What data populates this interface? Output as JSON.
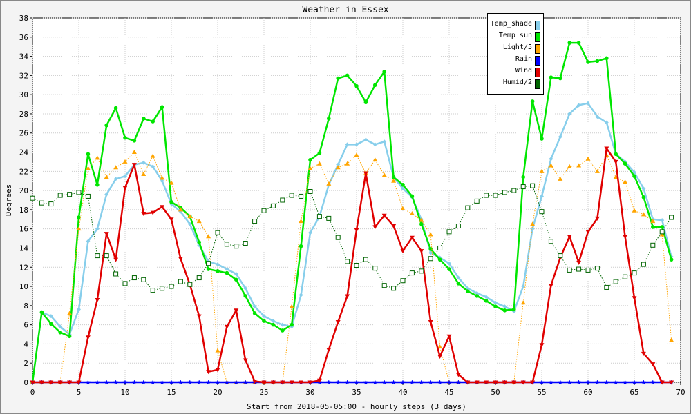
{
  "chart_data": {
    "type": "line",
    "title": "Weather in Essex",
    "xlabel": "Start from 2018-05-05:00 - hourly steps (3 days)",
    "ylabel": "Degrees",
    "xlim": [
      0,
      70
    ],
    "ylim": [
      0,
      38
    ],
    "x_ticks": [
      0,
      5,
      10,
      15,
      20,
      25,
      30,
      35,
      40,
      45,
      50,
      55,
      60,
      65,
      70
    ],
    "y_ticks": [
      0,
      2,
      4,
      6,
      8,
      10,
      12,
      14,
      16,
      18,
      20,
      22,
      24,
      26,
      28,
      30,
      32,
      34,
      36,
      38
    ],
    "grid": true,
    "legend_position": "top-right",
    "x": [
      0,
      1,
      2,
      3,
      4,
      5,
      6,
      7,
      8,
      9,
      10,
      11,
      12,
      13,
      14,
      15,
      16,
      17,
      18,
      19,
      20,
      21,
      22,
      23,
      24,
      25,
      26,
      27,
      28,
      29,
      30,
      31,
      32,
      33,
      34,
      35,
      36,
      37,
      38,
      39,
      40,
      41,
      42,
      43,
      44,
      45,
      46,
      47,
      48,
      49,
      50,
      51,
      52,
      53,
      54,
      55,
      56,
      57,
      58,
      59,
      60,
      61,
      62,
      63,
      64,
      65,
      66,
      67,
      68,
      69
    ],
    "series": [
      {
        "name": "Temp_shade",
        "color": "#87ceeb",
        "marker": "diamond",
        "width": 2.5,
        "values": [
          0,
          7.3,
          6.9,
          5.8,
          5.0,
          7.6,
          14.7,
          16.0,
          19.6,
          21.2,
          21.5,
          22.7,
          22.9,
          22.5,
          21.0,
          18.6,
          17.8,
          16.5,
          14.3,
          12.6,
          12.3,
          11.8,
          11.3,
          9.8,
          7.9,
          6.9,
          6.4,
          6.0,
          5.8,
          9.1,
          15.6,
          17.3,
          20.6,
          22.7,
          24.8,
          24.8,
          25.3,
          24.8,
          25.1,
          21.4,
          20.2,
          19.3,
          17.0,
          13.5,
          13.0,
          12.4,
          10.9,
          9.8,
          9.3,
          8.9,
          8.3,
          7.9,
          7.4,
          10.0,
          16.0,
          19.4,
          23.3,
          25.6,
          28.0,
          28.9,
          29.1,
          27.7,
          27.1,
          23.8,
          23.0,
          21.9,
          20.2,
          17.0,
          16.9,
          13.1
        ]
      },
      {
        "name": "Temp_sun",
        "color": "#00e600",
        "marker": "circle",
        "width": 2.5,
        "values": [
          0,
          7.3,
          6.1,
          5.2,
          4.8,
          17.2,
          23.8,
          20.6,
          26.8,
          28.6,
          25.5,
          25.2,
          27.5,
          27.2,
          28.7,
          18.8,
          18.2,
          17.3,
          14.6,
          11.8,
          11.6,
          11.4,
          10.7,
          9.0,
          7.2,
          6.4,
          6.0,
          5.4,
          6.0,
          14.2,
          23.2,
          23.9,
          27.5,
          31.7,
          32.0,
          30.9,
          29.2,
          31.0,
          32.4,
          21.4,
          20.6,
          19.4,
          16.5,
          13.9,
          12.8,
          11.8,
          10.3,
          9.5,
          9.0,
          8.5,
          7.9,
          7.5,
          7.6,
          21.4,
          29.3,
          25.4,
          31.8,
          31.7,
          35.4,
          35.4,
          33.4,
          33.5,
          33.8,
          23.8,
          22.8,
          21.5,
          19.3,
          16.2,
          16.2,
          12.8
        ]
      },
      {
        "name": "Light/5",
        "color": "#ffa500",
        "marker": "triangle-up",
        "width": 1,
        "dotted": true,
        "values": [
          0,
          0,
          0,
          0,
          7.2,
          16.0,
          22.3,
          23.4,
          21.4,
          22.4,
          23.0,
          24.0,
          21.7,
          23.6,
          21.3,
          20.8,
          18.0,
          17.3,
          16.8,
          15.2,
          3.3,
          0,
          0,
          0,
          0,
          0,
          0,
          0,
          7.9,
          16.8,
          22.3,
          22.8,
          20.7,
          22.4,
          22.8,
          23.7,
          21.8,
          23.2,
          21.6,
          21.0,
          18.1,
          17.6,
          16.9,
          15.4,
          3.7,
          0,
          0,
          0,
          0,
          0,
          0,
          0,
          0,
          8.3,
          16.5,
          22.0,
          22.6,
          21.2,
          22.5,
          22.6,
          23.3,
          22.0,
          23.7,
          21.4,
          20.9,
          17.9,
          17.5,
          16.8,
          15.4,
          4.4
        ]
      },
      {
        "name": "Rain",
        "color": "#0000ff",
        "marker": "star",
        "width": 2.5,
        "values": [
          0,
          0,
          0,
          0,
          0,
          0,
          0,
          0,
          0,
          0,
          0,
          0,
          0,
          0,
          0,
          0,
          0,
          0,
          0,
          0,
          0,
          0,
          0,
          0,
          0,
          0,
          0,
          0,
          0,
          0,
          0,
          0,
          0,
          0,
          0,
          0,
          0,
          0,
          0,
          0,
          0,
          0,
          0,
          0,
          0,
          0,
          0,
          0,
          0,
          0,
          0,
          0,
          0,
          0,
          0,
          0,
          0,
          0,
          0,
          0,
          0,
          0,
          0,
          0,
          0,
          0,
          0,
          0,
          0,
          0
        ]
      },
      {
        "name": "Wind",
        "color": "#e00000",
        "marker": "triangle-down",
        "width": 2.5,
        "values": [
          0,
          0,
          0,
          0,
          0,
          0,
          4.7,
          8.6,
          15.5,
          12.8,
          20.3,
          22.7,
          17.6,
          17.7,
          18.3,
          17.0,
          12.9,
          10.2,
          6.9,
          1.1,
          1.3,
          5.8,
          7.5,
          2.3,
          0.1,
          0,
          0,
          0,
          0,
          0,
          0,
          0.2,
          3.4,
          6.3,
          9.0,
          15.9,
          21.8,
          16.2,
          17.4,
          16.3,
          13.7,
          15.1,
          13.7,
          6.3,
          2.7,
          4.8,
          0.8,
          0,
          0,
          0,
          0,
          0,
          0,
          0,
          0,
          3.9,
          10.1,
          13.0,
          15.2,
          12.5,
          15.7,
          17.1,
          24.4,
          23.0,
          15.2,
          8.8,
          3.0,
          1.9,
          0,
          0
        ]
      },
      {
        "name": "Humid/2",
        "color": "#006400",
        "marker": "square",
        "width": 1,
        "dotted": true,
        "values": [
          19.2,
          18.7,
          18.6,
          19.5,
          19.6,
          19.8,
          19.4,
          13.2,
          13.2,
          11.3,
          10.3,
          10.9,
          10.7,
          9.6,
          9.8,
          10.0,
          10.5,
          10.2,
          10.9,
          12.4,
          15.6,
          14.4,
          14.2,
          14.5,
          16.8,
          17.9,
          18.4,
          19.0,
          19.5,
          19.4,
          19.9,
          17.3,
          17.1,
          15.1,
          12.6,
          12.2,
          12.8,
          11.9,
          10.1,
          9.8,
          10.6,
          11.4,
          11.6,
          12.9,
          14.0,
          15.7,
          16.3,
          18.2,
          18.9,
          19.5,
          19.5,
          19.8,
          20.0,
          20.4,
          20.5,
          17.8,
          14.7,
          13.2,
          11.7,
          11.8,
          11.7,
          11.9,
          9.9,
          10.5,
          11.0,
          11.4,
          12.3,
          14.3,
          15.7,
          17.2
        ]
      }
    ]
  }
}
